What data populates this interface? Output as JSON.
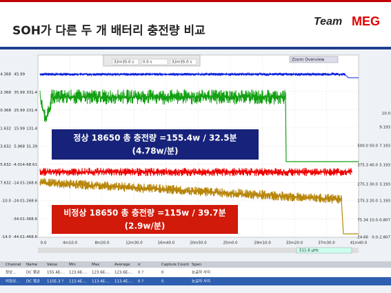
{
  "header": {
    "title": "SOH가 다른 두 개 배터리 충전량 비교",
    "logo_team": "Team",
    "logo_meg": "MEG"
  },
  "toolbar": {
    "fields": [
      "32m35.0 s",
      "0.0 s",
      "32m35.0 s"
    ],
    "zoom": "Zoom Overview"
  },
  "left_axis": [
    [
      "4.368",
      "45.99",
      ""
    ],
    [
      "2.368",
      "35.99",
      "331.4"
    ],
    [
      "0.368",
      "25.99",
      "231.4"
    ],
    [
      "-1.632",
      "15.99",
      "131.4"
    ],
    [
      "-3.632",
      "5.968",
      "31.39"
    ],
    [
      "-5.632",
      "-4.014",
      "-68.61"
    ],
    [
      "-7.632",
      "-14.01",
      "-168.6"
    ],
    [
      "-10.0",
      "-24.01",
      "-268.6"
    ],
    [
      "",
      "-34.01",
      "-368.6"
    ],
    [
      "-14.0",
      "-44.01",
      "-468.6"
    ]
  ],
  "right_axis": [
    [
      "",
      "",
      "10.0"
    ],
    [
      "",
      "",
      "9.193"
    ],
    [
      "500.0",
      "50.0",
      "7.193"
    ],
    [
      "375.3",
      "40.0",
      "5.193"
    ],
    [
      "275.3",
      "30.0",
      "3.193"
    ],
    [
      "175.3",
      "20.0",
      "1.193"
    ],
    [
      "75.34",
      "10.0",
      "-0.807"
    ],
    [
      "24.66",
      "0.0",
      "-2.807"
    ]
  ],
  "x_axis": [
    "0.0",
    "4m10.0",
    "8m20.0",
    "12m30.0",
    "16m40.0",
    "20m50.0",
    "25m0.0",
    "29m10.0",
    "33m20.0",
    "37m30.0",
    "41m40.0"
  ],
  "annotations": {
    "normal": [
      "정상 18650 총 충전량 =155.4w / 32.5분",
      "(4.78w/분)"
    ],
    "abnormal": [
      "비정상 18650 총 충전량 =115w / 39.7분",
      "(2.9w/분)"
    ]
  },
  "status": "511.6 μHz",
  "table": {
    "headers": [
      "Channel",
      "Name",
      "Value",
      "Min",
      "Max",
      "Average",
      "σ",
      "Capture Count",
      "Span"
    ],
    "rows": [
      [
        "정상...",
        "DC 평균",
        "155.4E-...",
        "123.6E-...",
        "123.6E-...",
        "123.6E-...",
        "0 ?",
        "0",
        "눈금자 사이"
      ],
      [
        "비정상...",
        "DC 평균",
        "115E-3 ?",
        "113.4E-...",
        "113.4E-...",
        "113.4E-...",
        "0 ?",
        "0",
        "눈금자 사이"
      ]
    ]
  }
}
